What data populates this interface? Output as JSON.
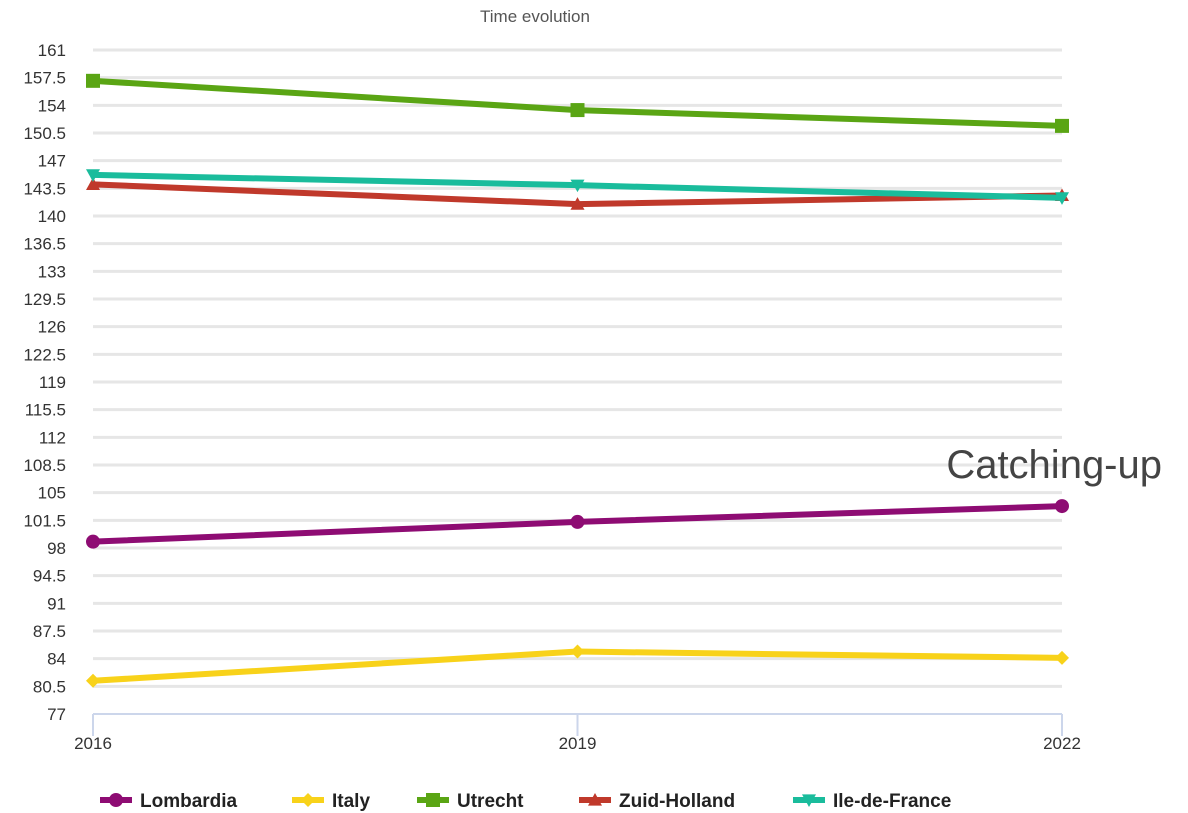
{
  "chart_data": {
    "type": "line",
    "title": "Time evolution",
    "xlabel": "",
    "ylabel": "",
    "x": [
      "2016",
      "2019",
      "2022"
    ],
    "yticks": [
      "161",
      "157.5",
      "154",
      "150.5",
      "147",
      "143.5",
      "140",
      "136.5",
      "133",
      "129.5",
      "126",
      "122.5",
      "119",
      "115.5",
      "112",
      "108.5",
      "105",
      "101.5",
      "98",
      "94.5",
      "91",
      "87.5",
      "84",
      "80.5",
      "77"
    ],
    "ylim": [
      77,
      161
    ],
    "grid": true,
    "legend_position": "bottom",
    "annotation": "Catching-up",
    "series": [
      {
        "name": "Lombardia",
        "values": [
          98.8,
          101.3,
          103.3
        ],
        "color": "#8e0c73",
        "marker": "circle"
      },
      {
        "name": "Italy",
        "values": [
          81.2,
          84.9,
          84.1
        ],
        "color": "#f8d21a",
        "marker": "diamond"
      },
      {
        "name": "Utrecht",
        "values": [
          157.1,
          153.4,
          151.4
        ],
        "color": "#5aa514",
        "marker": "square"
      },
      {
        "name": "Zuid-Holland",
        "values": [
          144.0,
          141.5,
          142.6
        ],
        "color": "#c0392b",
        "marker": "triangle"
      },
      {
        "name": "Ile-de-France",
        "values": [
          145.2,
          143.9,
          142.3
        ],
        "color": "#1abc9c",
        "marker": "triangle-down"
      }
    ]
  }
}
